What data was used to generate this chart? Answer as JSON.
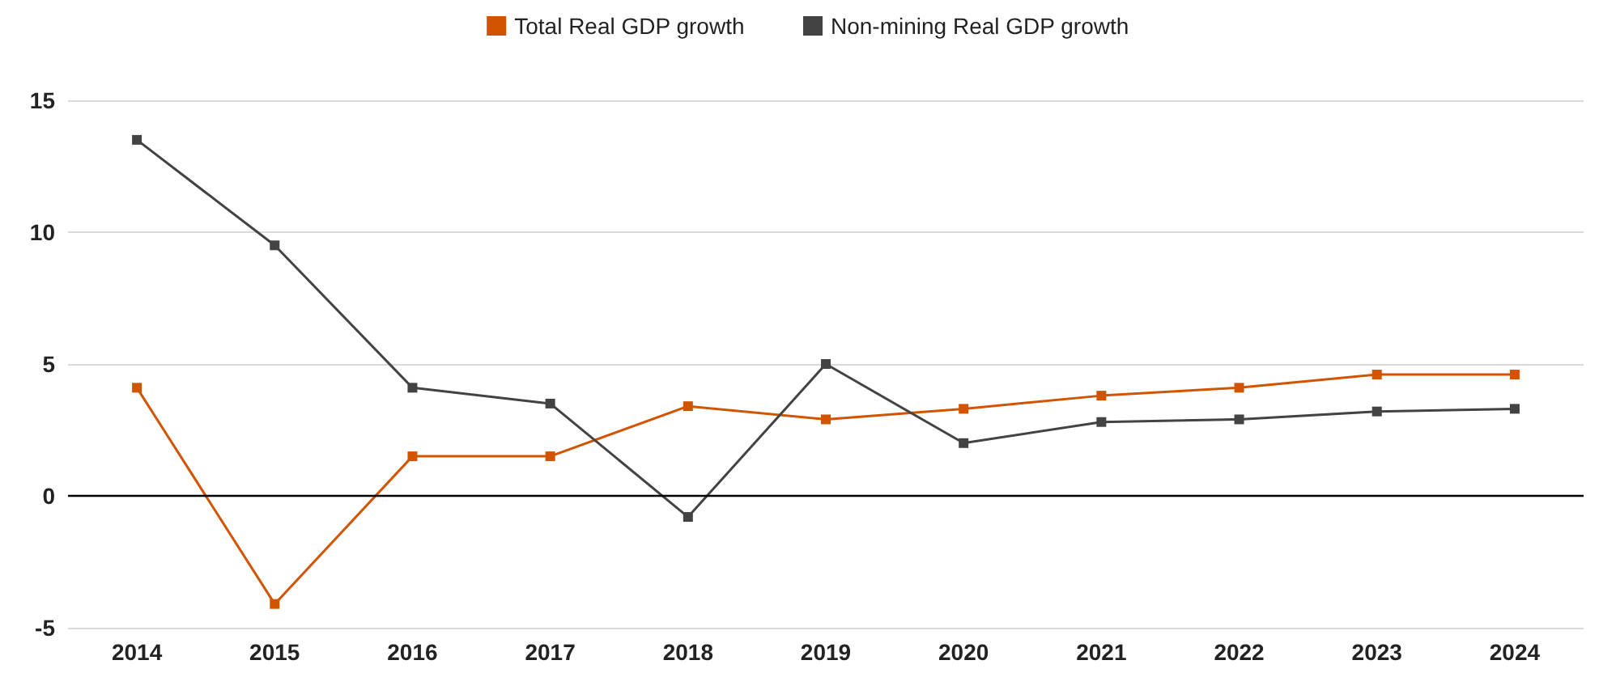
{
  "chart_data": {
    "type": "line",
    "categories": [
      "2014",
      "2015",
      "2016",
      "2017",
      "2018",
      "2019",
      "2020",
      "2021",
      "2022",
      "2023",
      "2024"
    ],
    "series": [
      {
        "name": "Total Real GDP growth",
        "color": "#d35400",
        "values": [
          4.1,
          -4.1,
          1.5,
          1.5,
          3.4,
          2.9,
          3.3,
          3.8,
          4.1,
          4.6,
          4.6
        ]
      },
      {
        "name": "Non-mining Real GDP growth",
        "color": "#434343",
        "values": [
          13.5,
          9.5,
          4.1,
          3.5,
          -0.8,
          5.0,
          2.0,
          2.8,
          2.9,
          3.2,
          3.3
        ]
      }
    ],
    "ylim": [
      -5,
      15
    ],
    "yticks": [
      -5,
      0,
      5,
      10,
      15
    ],
    "ref_lines": [
      {
        "axis": "y",
        "value": 0,
        "color": "#000000"
      }
    ],
    "grid": "y",
    "legend": "top",
    "marker": "square",
    "line_style": "solid"
  }
}
